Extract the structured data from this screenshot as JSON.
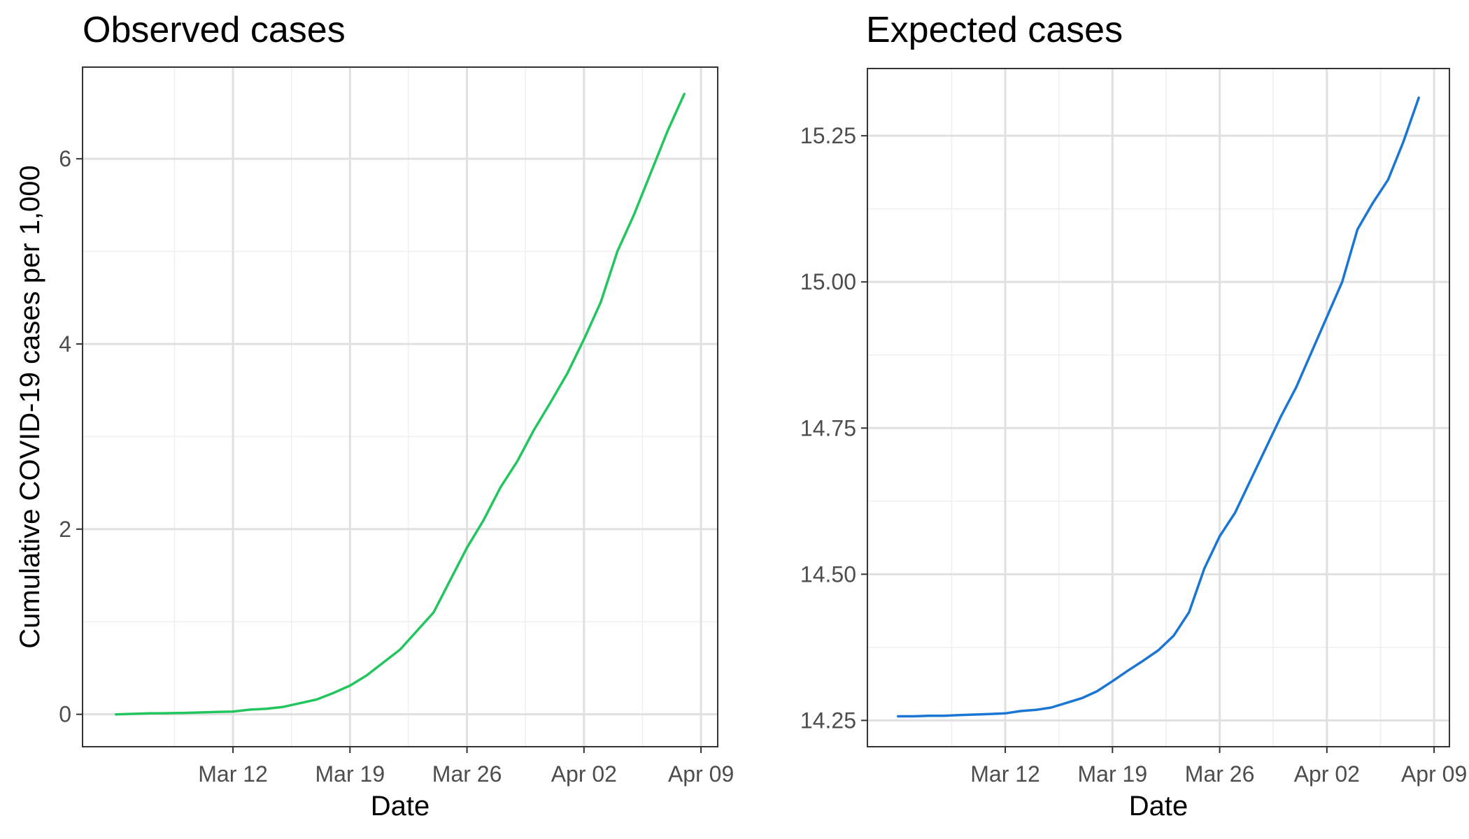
{
  "chart_data": [
    {
      "type": "line",
      "title": "Observed cases",
      "xlabel": "Date",
      "ylabel": "Cumulative COVID-19 cases per 1,000",
      "x_axis_type": "date",
      "xlim": [
        "2020-03-03",
        "2020-04-10"
      ],
      "ylim": [
        -0.35,
        6.99
      ],
      "x_ticks": [
        "2020-03-12",
        "2020-03-19",
        "2020-03-26",
        "2020-04-02",
        "2020-04-09"
      ],
      "x_tick_labels": [
        "Mar 12",
        "Mar 19",
        "Mar 26",
        "Apr 02",
        "Apr 09"
      ],
      "y_ticks": [
        0,
        2,
        4,
        6
      ],
      "y_tick_labels": [
        "0",
        "2",
        "4",
        "6"
      ],
      "y_minor": [
        1,
        3,
        5
      ],
      "grid": true,
      "legend": "none",
      "series": [
        {
          "color": "#22c55e",
          "x": [
            "2020-03-05",
            "2020-03-06",
            "2020-03-07",
            "2020-03-08",
            "2020-03-09",
            "2020-03-10",
            "2020-03-11",
            "2020-03-12",
            "2020-03-13",
            "2020-03-14",
            "2020-03-15",
            "2020-03-16",
            "2020-03-17",
            "2020-03-18",
            "2020-03-19",
            "2020-03-20",
            "2020-03-21",
            "2020-03-22",
            "2020-03-23",
            "2020-03-24",
            "2020-03-25",
            "2020-03-26",
            "2020-03-27",
            "2020-03-28",
            "2020-03-29",
            "2020-03-30",
            "2020-03-31",
            "2020-04-01",
            "2020-04-02",
            "2020-04-03",
            "2020-04-04",
            "2020-04-05",
            "2020-04-06",
            "2020-04-07",
            "2020-04-08"
          ],
          "values": [
            0.0,
            0.005,
            0.01,
            0.012,
            0.015,
            0.02,
            0.025,
            0.03,
            0.05,
            0.06,
            0.08,
            0.12,
            0.16,
            0.23,
            0.31,
            0.42,
            0.56,
            0.7,
            0.9,
            1.1,
            1.45,
            1.8,
            2.1,
            2.45,
            2.73,
            3.07,
            3.37,
            3.68,
            4.05,
            4.45,
            5.0,
            5.4,
            5.85,
            6.3,
            6.7
          ]
        }
      ]
    },
    {
      "type": "line",
      "title": "Expected cases",
      "xlabel": "Date",
      "ylabel": "",
      "x_axis_type": "date",
      "xlim": [
        "2020-03-03",
        "2020-04-10"
      ],
      "ylim": [
        14.205,
        15.365
      ],
      "x_ticks": [
        "2020-03-12",
        "2020-03-19",
        "2020-03-26",
        "2020-04-02",
        "2020-04-09"
      ],
      "x_tick_labels": [
        "Mar 12",
        "Mar 19",
        "Mar 26",
        "Apr 02",
        "Apr 09"
      ],
      "y_ticks": [
        14.25,
        14.5,
        14.75,
        15.0,
        15.25
      ],
      "y_tick_labels": [
        "14.25",
        "14.50",
        "14.75",
        "15.00",
        "15.25"
      ],
      "y_minor": [
        14.375,
        14.625,
        14.875,
        15.125
      ],
      "grid": true,
      "legend": "none",
      "series": [
        {
          "color": "#1976d2",
          "x": [
            "2020-03-05",
            "2020-03-06",
            "2020-03-07",
            "2020-03-08",
            "2020-03-09",
            "2020-03-10",
            "2020-03-11",
            "2020-03-12",
            "2020-03-13",
            "2020-03-14",
            "2020-03-15",
            "2020-03-16",
            "2020-03-17",
            "2020-03-18",
            "2020-03-19",
            "2020-03-20",
            "2020-03-21",
            "2020-03-22",
            "2020-03-23",
            "2020-03-24",
            "2020-03-25",
            "2020-03-26",
            "2020-03-27",
            "2020-03-28",
            "2020-03-29",
            "2020-03-30",
            "2020-03-31",
            "2020-04-01",
            "2020-04-02",
            "2020-04-03",
            "2020-04-04",
            "2020-04-05",
            "2020-04-06",
            "2020-04-07",
            "2020-04-08"
          ],
          "values": [
            14.257,
            14.257,
            14.258,
            14.258,
            14.259,
            14.26,
            14.261,
            14.262,
            14.266,
            14.268,
            14.272,
            14.28,
            14.288,
            14.3,
            14.317,
            14.335,
            14.352,
            14.37,
            14.395,
            14.435,
            14.51,
            14.565,
            14.605,
            14.66,
            14.715,
            14.77,
            14.82,
            14.88,
            14.94,
            15.0,
            15.09,
            15.135,
            15.175,
            15.24,
            15.315
          ]
        }
      ]
    }
  ]
}
